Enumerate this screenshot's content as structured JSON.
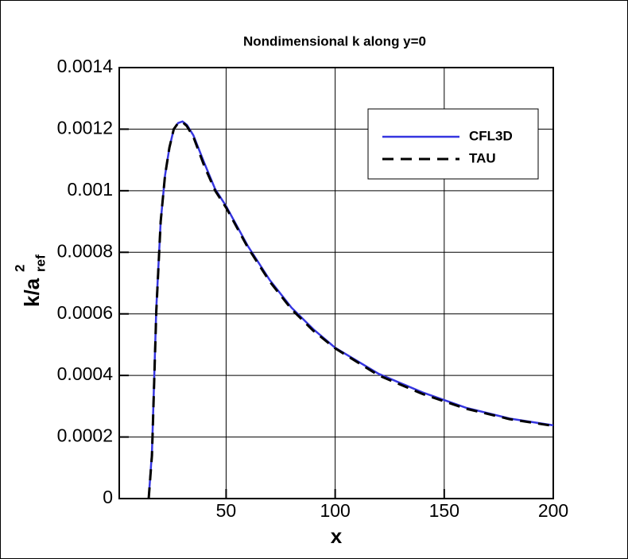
{
  "chart_data": {
    "type": "line",
    "title": "Nondimensional k along y=0",
    "xlabel": "x",
    "ylabel": {
      "main": "k/a",
      "sub": "ref",
      "sup": "2"
    },
    "x": [
      14.5,
      16,
      18,
      20,
      22,
      24,
      26,
      28,
      30,
      32,
      35,
      40,
      45,
      50,
      60,
      70,
      80,
      90,
      100,
      120,
      140,
      160,
      180,
      200
    ],
    "series": [
      {
        "name": "CFL3D",
        "color": "#3535e0",
        "dash": false,
        "values": [
          0,
          0.00015,
          0.00062,
          0.0009,
          0.00105,
          0.00114,
          0.0012,
          0.00122,
          0.001225,
          0.001214,
          0.00118,
          0.00109,
          0.001005,
          0.00095,
          0.00082,
          0.00071,
          0.00062,
          0.00055,
          0.00049,
          0.000405,
          0.000345,
          0.000295,
          0.00026,
          0.000238
        ]
      },
      {
        "name": "TAU",
        "color": "#000000",
        "dash": true,
        "values": [
          0,
          0.00014,
          0.00061,
          0.0009,
          0.00105,
          0.00114,
          0.0012,
          0.00122,
          0.001223,
          0.00121,
          0.001175,
          0.00108,
          0.001,
          0.000945,
          0.000815,
          0.000705,
          0.000615,
          0.000545,
          0.000488,
          0.0004,
          0.00034,
          0.000292,
          0.000258,
          0.000236
        ]
      }
    ],
    "xlim": [
      1,
      200
    ],
    "xticks": [
      50,
      100,
      150,
      200
    ],
    "ylim": [
      0,
      0.0014
    ],
    "yticks": [
      0,
      0.0002,
      0.0004,
      0.0006,
      0.0008,
      0.001,
      0.0012,
      0.0014
    ],
    "grid": true,
    "legend": "upper right"
  }
}
